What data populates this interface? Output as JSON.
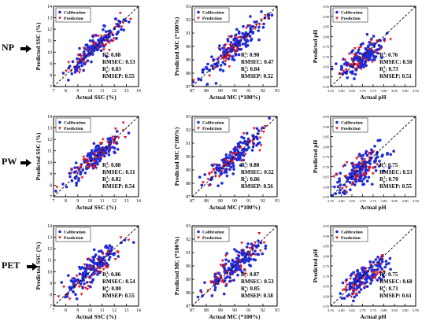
{
  "row_labels": [
    "NP",
    "PW",
    "PET"
  ],
  "colors": {
    "calibration": "#1f2bd6",
    "prediction": "#e0141e",
    "identity_line": "#000000"
  },
  "legend_labels": {
    "calibration": "Calibration",
    "prediction": "Prediction"
  },
  "chart_data": [
    {
      "id": "np-ssc",
      "type": "scatter",
      "row": 0,
      "col": 0,
      "xlabel": "Actual SSC (%)",
      "ylabel": "Predicted SSC (%)",
      "xlim": [
        7,
        14
      ],
      "ylim": [
        7,
        14
      ],
      "xticks": [
        7,
        8,
        9,
        10,
        11,
        12,
        13,
        14
      ],
      "yticks": [
        7,
        8,
        9,
        10,
        11,
        12,
        13,
        14
      ],
      "tick_decimals": 0,
      "center": [
        10.6,
        10.6
      ],
      "spread": [
        1.1,
        1.1
      ],
      "corr": 0.88,
      "legend": "top-left",
      "stats": [
        "Rc²: 0.88",
        "RMSEC: 0.53",
        "Rp²: 0.83",
        "RMSEP: 0.55"
      ],
      "n_cal": 140,
      "n_pred": 60,
      "seed": 11
    },
    {
      "id": "np-mc",
      "type": "scatter",
      "row": 0,
      "col": 1,
      "xlabel": "Actual MC (*100%)",
      "ylabel": "Predicted MC (*100%)",
      "xlim": [
        87,
        93
      ],
      "ylim": [
        87,
        93
      ],
      "xticks": [
        87,
        88,
        89,
        90,
        91,
        92,
        93
      ],
      "yticks": [
        87,
        88,
        89,
        90,
        91,
        92,
        93
      ],
      "tick_decimals": 0,
      "center": [
        90.0,
        90.0
      ],
      "spread": [
        1.0,
        1.0
      ],
      "corr": 0.9,
      "legend": "top-left",
      "stats": [
        "Rc²: 0.90",
        "RMSEC: 0.47",
        "Rp²: 0.84",
        "RMSEP: 0.52"
      ],
      "n_cal": 140,
      "n_pred": 60,
      "seed": 23
    },
    {
      "id": "np-ph",
      "type": "scatter",
      "row": 0,
      "col": 2,
      "xlabel": "Actual pH",
      "ylabel": "Predicted pH",
      "xlim": [
        3.55,
        3.95
      ],
      "ylim": [
        3.55,
        3.95
      ],
      "xticks": [
        3.55,
        3.6,
        3.65,
        3.7,
        3.75,
        3.8,
        3.85,
        3.9,
        3.95
      ],
      "yticks": [
        3.55,
        3.6,
        3.65,
        3.7,
        3.75,
        3.8,
        3.85,
        3.9,
        3.95
      ],
      "tick_decimals": 2,
      "center": [
        3.69,
        3.69
      ],
      "spread": [
        0.055,
        0.05
      ],
      "corr": 0.76,
      "legend": "top-left",
      "stats": [
        "Rc²: 0.76",
        "RMSEC: 0.50",
        "Rp²: 0.73",
        "RMSEP: 0.51"
      ],
      "n_cal": 140,
      "n_pred": 60,
      "seed": 37
    },
    {
      "id": "pw-ssc",
      "type": "scatter",
      "row": 1,
      "col": 0,
      "xlabel": "Actual SSC (%)",
      "ylabel": "Predicted SSC (%)",
      "xlim": [
        7,
        14
      ],
      "ylim": [
        7,
        14
      ],
      "xticks": [
        7,
        8,
        9,
        10,
        11,
        12,
        13,
        14
      ],
      "yticks": [
        7,
        8,
        9,
        10,
        11,
        12,
        13,
        14
      ],
      "tick_decimals": 0,
      "center": [
        10.4,
        10.4
      ],
      "spread": [
        1.1,
        1.05
      ],
      "corr": 0.88,
      "legend": "top-left",
      "stats": [
        "Rc²: 0.88",
        "RMSEC: 0.51",
        "Rp²: 0.82",
        "RMSEP: 0.54"
      ],
      "n_cal": 140,
      "n_pred": 60,
      "seed": 41
    },
    {
      "id": "pw-mc",
      "type": "scatter",
      "row": 1,
      "col": 1,
      "xlabel": "Actual MC (*100%)",
      "ylabel": "Predicted MC (*100%)",
      "xlim": [
        87,
        93
      ],
      "ylim": [
        87,
        93
      ],
      "xticks": [
        87,
        88,
        89,
        90,
        91,
        92,
        93
      ],
      "yticks": [
        87,
        88,
        89,
        90,
        91,
        92,
        93
      ],
      "tick_decimals": 0,
      "center": [
        90.0,
        90.0
      ],
      "spread": [
        1.0,
        1.0
      ],
      "corr": 0.88,
      "legend": "top-left",
      "stats": [
        "Rc²: 0.88",
        "RMSEC: 0.52",
        "Rp²: 0.86",
        "RMSEP: 0.56"
      ],
      "n_cal": 140,
      "n_pred": 60,
      "seed": 53
    },
    {
      "id": "pw-ph",
      "type": "scatter",
      "row": 1,
      "col": 2,
      "xlabel": "Actual pH",
      "ylabel": "Predicted pH",
      "xlim": [
        3.55,
        3.95
      ],
      "ylim": [
        3.55,
        3.95
      ],
      "xticks": [
        3.55,
        3.6,
        3.65,
        3.7,
        3.75,
        3.8,
        3.85,
        3.9,
        3.95
      ],
      "yticks": [
        3.55,
        3.6,
        3.65,
        3.7,
        3.75,
        3.8,
        3.85,
        3.9,
        3.95
      ],
      "tick_decimals": 2,
      "center": [
        3.69,
        3.68
      ],
      "spread": [
        0.055,
        0.05
      ],
      "corr": 0.75,
      "legend": "top-left",
      "stats": [
        "Rc²: 0.75",
        "RMSEC: 0.53",
        "Rp²: 0.70",
        "RMSEP: 0.55"
      ],
      "n_cal": 140,
      "n_pred": 60,
      "seed": 67
    },
    {
      "id": "pet-ssc",
      "type": "scatter",
      "row": 2,
      "col": 0,
      "xlabel": "Actual SSC (%)",
      "ylabel": "Predicted SSC (%)",
      "xlim": [
        7,
        14
      ],
      "ylim": [
        7,
        14
      ],
      "xticks": [
        7,
        8,
        9,
        10,
        11,
        12,
        13,
        14
      ],
      "yticks": [
        7,
        8,
        9,
        10,
        11,
        12,
        13,
        14
      ],
      "tick_decimals": 0,
      "center": [
        10.4,
        10.4
      ],
      "spread": [
        1.1,
        1.1
      ],
      "corr": 0.86,
      "legend": "top-left",
      "stats": [
        "Rc²: 0.86",
        "RMSEC: 0.54",
        "Rp²: 0.80",
        "RMSEP: 0.55"
      ],
      "n_cal": 140,
      "n_pred": 60,
      "seed": 71
    },
    {
      "id": "pet-mc",
      "type": "scatter",
      "row": 2,
      "col": 1,
      "xlabel": "Actual MC (*100%)",
      "ylabel": "Predicted MC (*100%)",
      "xlim": [
        87,
        93
      ],
      "ylim": [
        87,
        93
      ],
      "xticks": [
        87,
        88,
        89,
        90,
        91,
        92,
        93
      ],
      "yticks": [
        87,
        88,
        89,
        90,
        91,
        92,
        93
      ],
      "tick_decimals": 0,
      "center": [
        90.0,
        90.0
      ],
      "spread": [
        1.0,
        1.0
      ],
      "corr": 0.87,
      "legend": "top-left",
      "stats": [
        "Rc²: 0.87",
        "RMSEC: 0.53",
        "Rp²: 0.85",
        "RMSEP: 0.58"
      ],
      "n_cal": 140,
      "n_pred": 60,
      "seed": 83
    },
    {
      "id": "pet-ph",
      "type": "scatter",
      "row": 2,
      "col": 2,
      "xlabel": "Actual pH",
      "ylabel": "Predicted pH",
      "xlim": [
        3.55,
        3.95
      ],
      "ylim": [
        3.55,
        3.95
      ],
      "xticks": [
        3.55,
        3.6,
        3.65,
        3.7,
        3.75,
        3.8,
        3.85,
        3.9,
        3.95
      ],
      "yticks": [
        3.55,
        3.6,
        3.65,
        3.7,
        3.75,
        3.8,
        3.85,
        3.9,
        3.95
      ],
      "tick_decimals": 2,
      "center": [
        3.7,
        3.69
      ],
      "spread": [
        0.055,
        0.05
      ],
      "corr": 0.75,
      "legend": "top-left",
      "stats": [
        "Rc²: 0.75",
        "RMSEC: 0.60",
        "Rp²: 0.71",
        "RMSEP: 0.61"
      ],
      "n_cal": 140,
      "n_pred": 60,
      "seed": 97
    }
  ]
}
